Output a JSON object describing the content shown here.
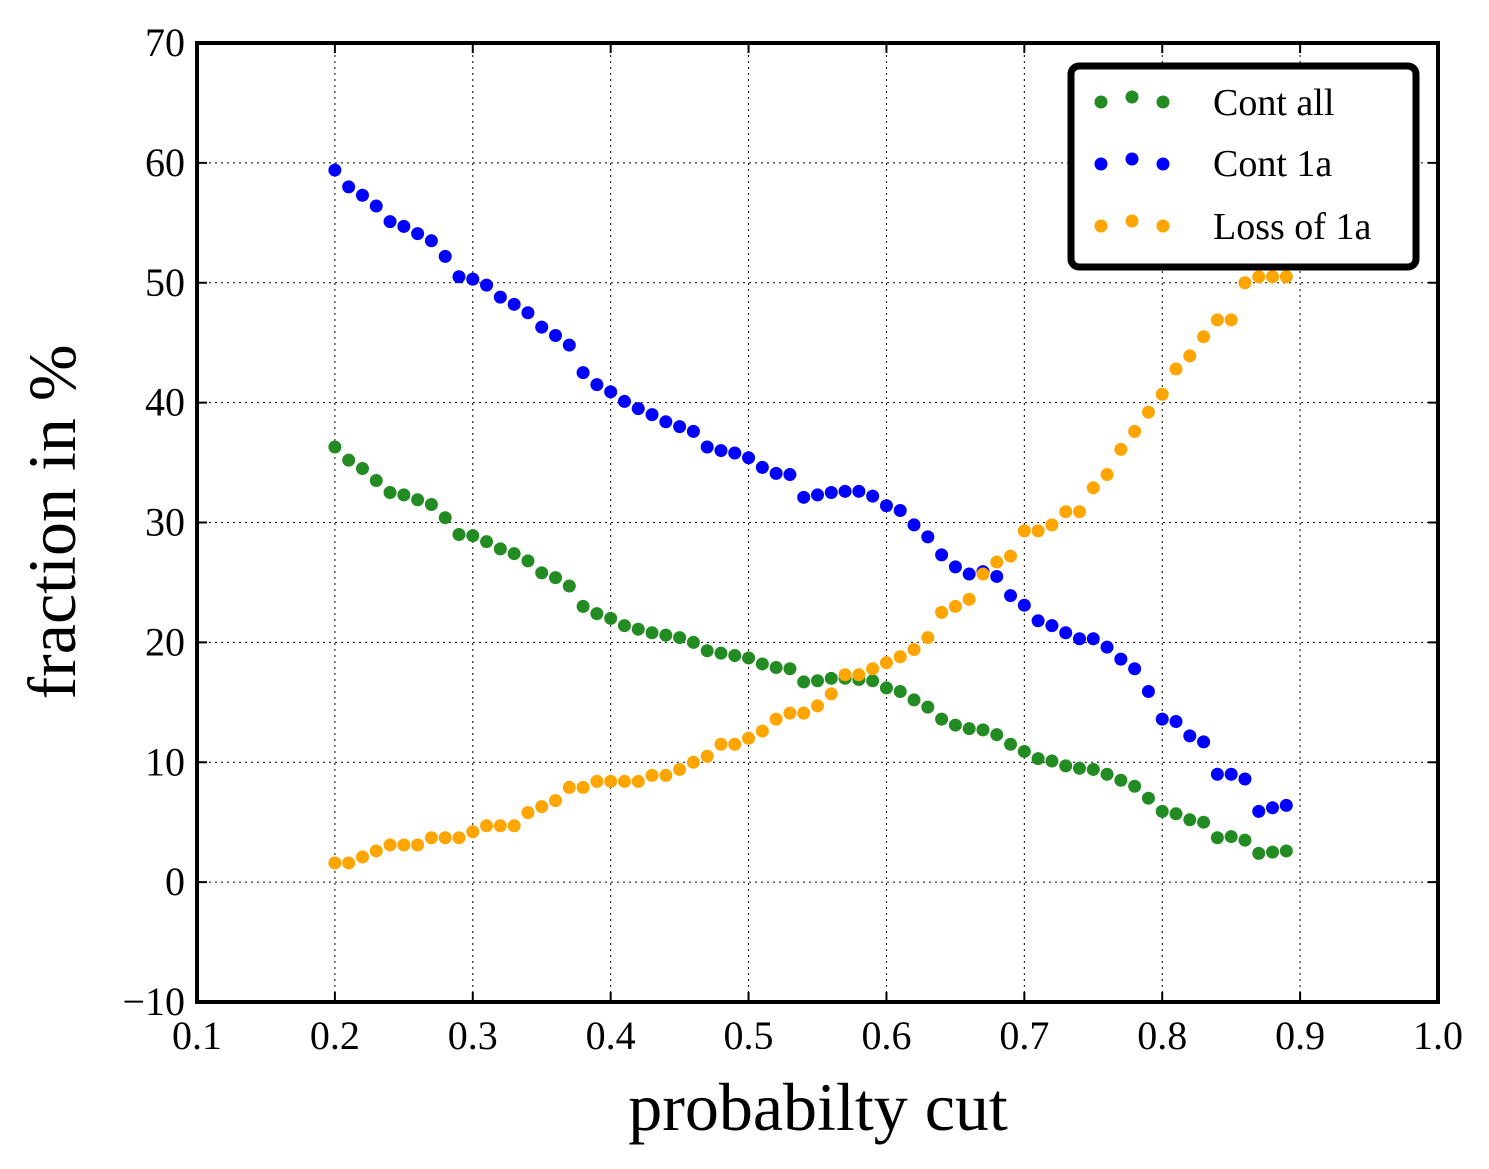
{
  "chart_data": {
    "type": "scatter",
    "title": "",
    "xlabel": "probabilty cut",
    "ylabel": "fraction in %",
    "xlim": [
      0.1,
      1.0
    ],
    "ylim": [
      -10,
      70
    ],
    "x_ticks": [
      0.1,
      0.2,
      0.3,
      0.4,
      0.5,
      0.6,
      0.7,
      0.8,
      0.9,
      1.0
    ],
    "x_tick_labels": [
      "0.1",
      "0.2",
      "0.3",
      "0.4",
      "0.5",
      "0.6",
      "0.7",
      "0.8",
      "0.9",
      "1.0"
    ],
    "y_ticks": [
      -10,
      0,
      10,
      20,
      30,
      40,
      50,
      60,
      70
    ],
    "y_tick_labels": [
      "−10",
      "0",
      "10",
      "20",
      "30",
      "40",
      "50",
      "60",
      "70"
    ],
    "grid": true,
    "legend_position": "top-right",
    "x": [
      0.2,
      0.21,
      0.22,
      0.23,
      0.24,
      0.25,
      0.26,
      0.27,
      0.28,
      0.29,
      0.3,
      0.31,
      0.32,
      0.33,
      0.34,
      0.35,
      0.36,
      0.37,
      0.38,
      0.39,
      0.4,
      0.41,
      0.42,
      0.43,
      0.44,
      0.45,
      0.46,
      0.47,
      0.48,
      0.49,
      0.5,
      0.51,
      0.52,
      0.53,
      0.54,
      0.55,
      0.56,
      0.57,
      0.58,
      0.59,
      0.6,
      0.61,
      0.62,
      0.63,
      0.64,
      0.65,
      0.66,
      0.67,
      0.68,
      0.69,
      0.7,
      0.71,
      0.72,
      0.73,
      0.74,
      0.75,
      0.76,
      0.77,
      0.78,
      0.79,
      0.8,
      0.81,
      0.82,
      0.83,
      0.84,
      0.85,
      0.86,
      0.87,
      0.88,
      0.89
    ],
    "series": [
      {
        "name": "Cont all",
        "color": "#228B22",
        "values": [
          36.3,
          35.2,
          34.5,
          33.5,
          32.5,
          32.3,
          31.9,
          31.5,
          30.4,
          29.0,
          28.9,
          28.4,
          27.8,
          27.4,
          26.8,
          25.8,
          25.4,
          24.7,
          23.0,
          22.4,
          22.0,
          21.4,
          21.1,
          20.8,
          20.6,
          20.4,
          20.0,
          19.3,
          19.1,
          18.9,
          18.7,
          18.2,
          17.9,
          17.8,
          16.7,
          16.8,
          17.0,
          17.0,
          16.9,
          16.8,
          16.2,
          15.9,
          15.2,
          14.6,
          13.6,
          13.1,
          12.8,
          12.7,
          12.3,
          11.5,
          10.9,
          10.3,
          10.1,
          9.7,
          9.5,
          9.4,
          9.0,
          8.5,
          8.0,
          7.0,
          5.9,
          5.7,
          5.2,
          5.0,
          3.7,
          3.8,
          3.5,
          2.4,
          2.5,
          2.6
        ]
      },
      {
        "name": "Cont 1a",
        "color": "#0000FF",
        "values": [
          59.4,
          58.0,
          57.3,
          56.4,
          55.1,
          54.7,
          54.1,
          53.5,
          52.2,
          50.5,
          50.3,
          49.8,
          48.8,
          48.2,
          47.5,
          46.3,
          45.6,
          44.8,
          42.5,
          41.5,
          40.9,
          40.1,
          39.5,
          39.0,
          38.4,
          38.0,
          37.6,
          36.3,
          36.0,
          35.8,
          35.4,
          34.6,
          34.1,
          34.0,
          32.1,
          32.3,
          32.5,
          32.6,
          32.6,
          32.2,
          31.4,
          31.0,
          29.8,
          28.8,
          27.3,
          26.3,
          25.7,
          25.9,
          25.5,
          23.9,
          23.1,
          21.8,
          21.4,
          20.8,
          20.3,
          20.3,
          19.6,
          18.6,
          17.8,
          15.9,
          13.6,
          13.4,
          12.2,
          11.7,
          9.0,
          9.0,
          8.6,
          5.9,
          6.2,
          6.4
        ]
      },
      {
        "name": "Loss of 1a",
        "color": "#FFA500",
        "values": [
          1.6,
          1.6,
          2.1,
          2.6,
          3.1,
          3.1,
          3.1,
          3.7,
          3.7,
          3.7,
          4.2,
          4.7,
          4.7,
          4.7,
          5.8,
          6.3,
          6.8,
          7.9,
          7.9,
          8.4,
          8.4,
          8.4,
          8.4,
          8.9,
          8.9,
          9.4,
          10.0,
          10.5,
          11.5,
          11.5,
          12.0,
          12.6,
          13.6,
          14.1,
          14.1,
          14.7,
          15.7,
          17.3,
          17.3,
          17.8,
          18.3,
          18.8,
          19.4,
          20.4,
          22.5,
          23.0,
          23.6,
          25.7,
          26.7,
          27.2,
          29.3,
          29.3,
          29.8,
          30.9,
          30.9,
          32.9,
          34.0,
          36.1,
          37.6,
          39.2,
          40.7,
          42.8,
          43.9,
          45.5,
          46.9,
          46.9,
          50.0,
          50.5,
          50.5,
          50.5
        ]
      }
    ]
  }
}
